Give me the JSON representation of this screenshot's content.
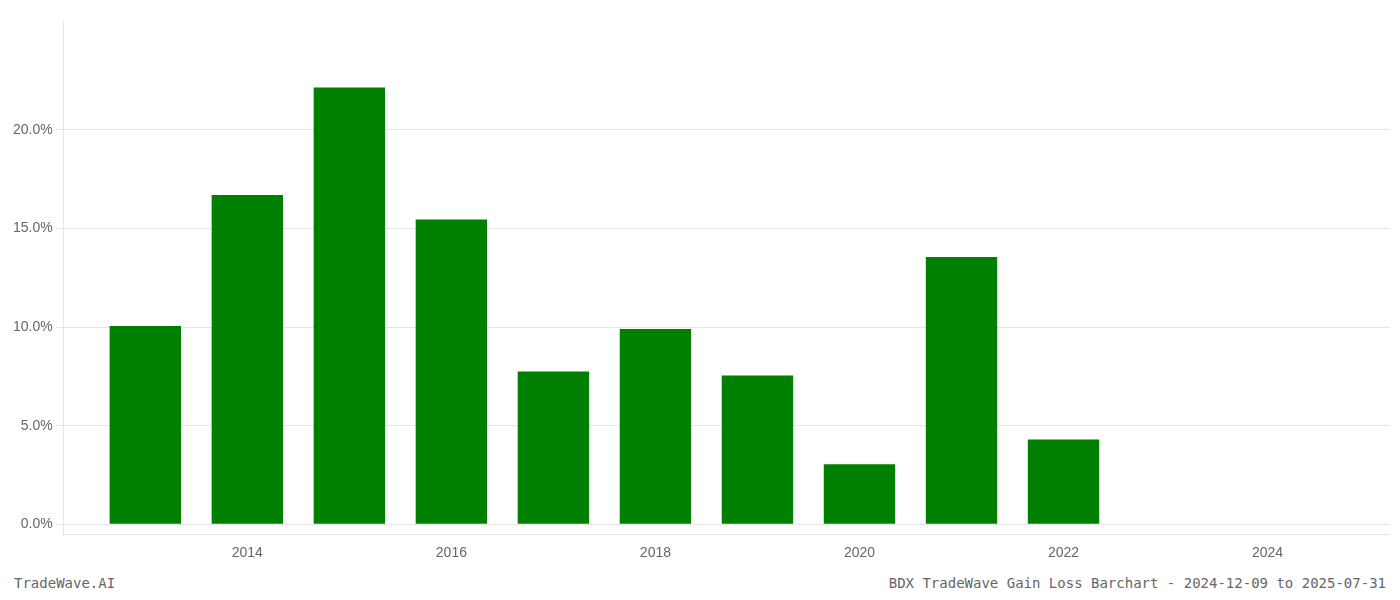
{
  "chart_data": {
    "type": "bar",
    "x": [
      2013,
      2014,
      2015,
      2016,
      2017,
      2018,
      2019,
      2020,
      2021,
      2022
    ],
    "values": [
      0.1005,
      0.167,
      0.2215,
      0.1545,
      0.0775,
      0.099,
      0.0755,
      0.0305,
      0.1355,
      0.043
    ],
    "color": "#008000",
    "xlim": [
      2012.2,
      2025.2
    ],
    "xticks": [
      2014,
      2016,
      2018,
      2020,
      2022,
      2024
    ],
    "ylim": [
      -0.005,
      0.255
    ],
    "yticks": [
      {
        "value": 0.0,
        "label": "0.0%"
      },
      {
        "value": 0.05,
        "label": "5.0%"
      },
      {
        "value": 0.1,
        "label": "10.0%"
      },
      {
        "value": 0.15,
        "label": "15.0%"
      },
      {
        "value": 0.2,
        "label": "20.0%"
      }
    ],
    "grid": true,
    "annotations": [
      "TradeWave.AI",
      "BDX TradeWave Gain Loss Barchart - 2024-12-09 to 2025-07-31"
    ]
  }
}
